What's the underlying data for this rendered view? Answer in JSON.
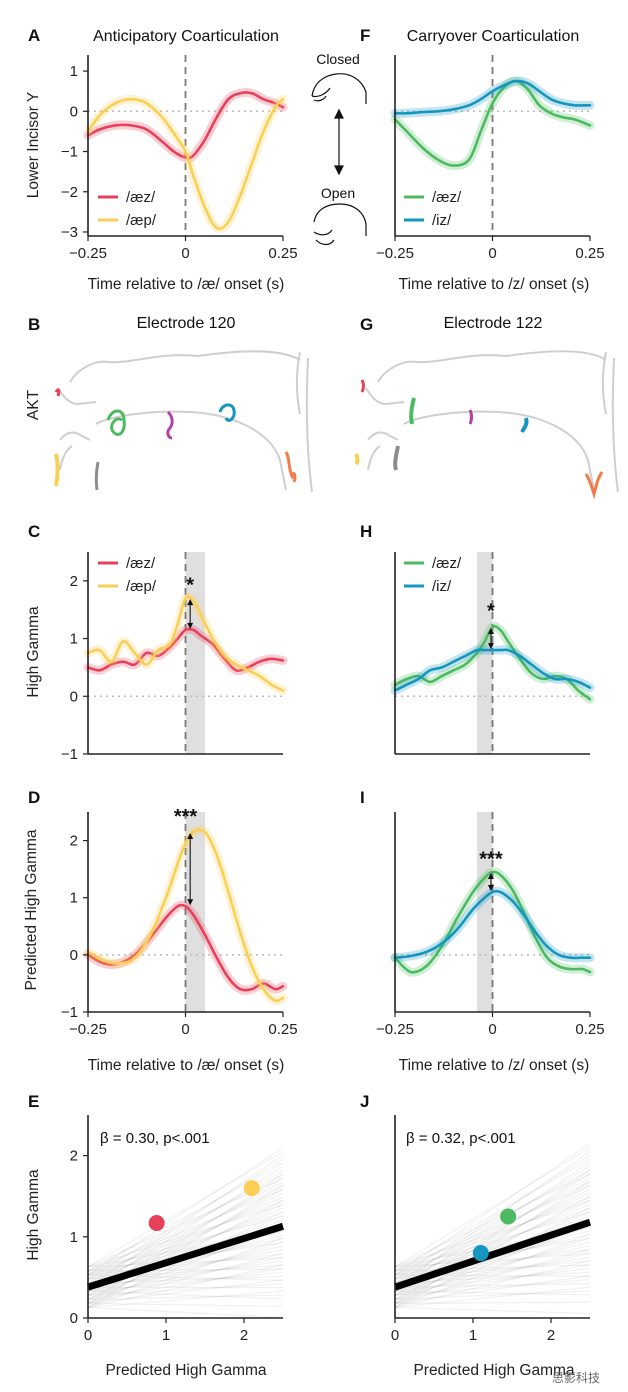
{
  "colors": {
    "red": "#e8405a",
    "yellow": "#fbcf56",
    "green": "#4cba61",
    "blue": "#1496be",
    "purple": "#b440a8",
    "orange": "#f07c4a",
    "gray": "#8c8c8c",
    "axis": "#222222",
    "grid": "#bbbbbb",
    "shade": "#d9d9d9"
  },
  "icons": [
    "jaw-closed-icon",
    "jaw-open-icon",
    "double-arrow-icon"
  ],
  "jaw_labels": {
    "closed": "Closed",
    "open": "Open"
  },
  "panels": {
    "A": {
      "letter": "A",
      "title": "Anticipatory Coarticulation"
    },
    "B": {
      "letter": "B",
      "title": "Electrode 120",
      "ylabel": "AKT"
    },
    "C": {
      "letter": "C"
    },
    "D": {
      "letter": "D"
    },
    "E": {
      "letter": "E",
      "stat": "β = 0.30, p<.001"
    },
    "F": {
      "letter": "F",
      "title": "Carryover Coarticulation"
    },
    "G": {
      "letter": "G",
      "title": "Electrode 122"
    },
    "H": {
      "letter": "H"
    },
    "I": {
      "letter": "I"
    },
    "J": {
      "letter": "J",
      "stat": "β = 0.32, p<.001"
    }
  },
  "axis_labels": {
    "y_lower_incisor": "Lower Incisor Y",
    "y_high_gamma": "High Gamma",
    "y_pred_high_gamma": "Predicted High Gamma",
    "x_ae": "Time relative to /æ/ onset (s)",
    "x_z": "Time relative to /z/ onset (s)",
    "x_pred": "Predicted High Gamma"
  },
  "legends": {
    "A": [
      "/æz/",
      "/æp/"
    ],
    "C": [
      "/æz/",
      "/æp/"
    ],
    "F": [
      "/æz/",
      "/iz/"
    ],
    "H": [
      "/æz/",
      "/iz/"
    ]
  },
  "significance": {
    "C": "*",
    "D": "***",
    "H": "*",
    "I": "***"
  },
  "watermark": "思影科技",
  "chart_data": [
    {
      "panel": "A",
      "type": "line",
      "xlabel": "Time relative to /æ/ onset (s)",
      "ylabel": "Lower Incisor Y",
      "xlim": [
        -0.25,
        0.25
      ],
      "ylim": [
        -3.1,
        1.4
      ],
      "xticks": [
        -0.25,
        0,
        0.25
      ],
      "yticks": [
        1,
        0,
        -1,
        -2,
        -3
      ],
      "xtick_labels": [
        "−0.25",
        "0",
        "0.25"
      ],
      "ytick_labels": [
        "1",
        "0",
        "−1",
        "−2",
        "−3"
      ],
      "x": [
        -0.25,
        -0.22,
        -0.18,
        -0.14,
        -0.1,
        -0.06,
        -0.03,
        0.0,
        0.02,
        0.05,
        0.08,
        0.11,
        0.14,
        0.17,
        0.2,
        0.23,
        0.25
      ],
      "series": [
        {
          "name": "/æz/",
          "color": "red",
          "values": [
            -0.6,
            -0.45,
            -0.35,
            -0.35,
            -0.45,
            -0.75,
            -1.0,
            -1.15,
            -1.1,
            -0.7,
            -0.15,
            0.3,
            0.45,
            0.45,
            0.3,
            0.2,
            0.1
          ]
        },
        {
          "name": "/æp/",
          "color": "yellow",
          "values": [
            -0.5,
            -0.1,
            0.2,
            0.3,
            0.2,
            -0.15,
            -0.55,
            -1.0,
            -1.6,
            -2.4,
            -2.9,
            -2.75,
            -2.1,
            -1.3,
            -0.5,
            0.1,
            0.3
          ]
        }
      ]
    },
    {
      "panel": "F",
      "type": "line",
      "xlabel": "Time relative to /z/ onset (s)",
      "xlim": [
        -0.25,
        0.25
      ],
      "ylim": [
        -3.1,
        1.4
      ],
      "xticks": [
        -0.25,
        0,
        0.25
      ],
      "xtick_labels": [
        "−0.25",
        "0",
        "0.25"
      ],
      "x": [
        -0.25,
        -0.22,
        -0.18,
        -0.14,
        -0.1,
        -0.06,
        -0.03,
        0.0,
        0.03,
        0.06,
        0.09,
        0.12,
        0.15,
        0.18,
        0.21,
        0.25
      ],
      "series": [
        {
          "name": "/æz/",
          "color": "green",
          "values": [
            -0.2,
            -0.5,
            -0.9,
            -1.2,
            -1.35,
            -1.2,
            -0.5,
            0.2,
            0.6,
            0.75,
            0.55,
            0.15,
            -0.05,
            -0.15,
            -0.2,
            -0.35
          ]
        },
        {
          "name": "/iz/",
          "color": "blue",
          "values": [
            -0.05,
            -0.05,
            -0.02,
            0.0,
            0.05,
            0.15,
            0.3,
            0.5,
            0.65,
            0.75,
            0.7,
            0.5,
            0.3,
            0.2,
            0.15,
            0.15
          ]
        }
      ]
    },
    {
      "panel": "C",
      "type": "line",
      "ylabel": "High Gamma",
      "xlim": [
        -0.25,
        0.25
      ],
      "ylim": [
        -1,
        2.5
      ],
      "yticks": [
        2,
        1,
        0,
        -1
      ],
      "ytick_labels": [
        "2",
        "1",
        "0",
        "−1"
      ],
      "shade": [
        0,
        0.05
      ],
      "x": [
        -0.25,
        -0.22,
        -0.19,
        -0.16,
        -0.13,
        -0.1,
        -0.07,
        -0.04,
        -0.02,
        0.0,
        0.02,
        0.04,
        0.07,
        0.1,
        0.13,
        0.16,
        0.19,
        0.22,
        0.25
      ],
      "series": [
        {
          "name": "/æz/",
          "color": "red",
          "values": [
            0.5,
            0.45,
            0.55,
            0.6,
            0.55,
            0.75,
            0.7,
            0.85,
            1.0,
            1.15,
            1.15,
            1.05,
            0.9,
            0.65,
            0.45,
            0.5,
            0.6,
            0.65,
            0.62
          ]
        },
        {
          "name": "/æp/",
          "color": "yellow",
          "values": [
            0.75,
            0.8,
            0.6,
            0.95,
            0.75,
            0.55,
            0.8,
            0.9,
            1.25,
            1.7,
            1.65,
            1.4,
            1.0,
            0.7,
            0.55,
            0.45,
            0.35,
            0.2,
            0.1
          ]
        }
      ]
    },
    {
      "panel": "H",
      "type": "line",
      "xlim": [
        -0.25,
        0.25
      ],
      "ylim": [
        -1,
        2.5
      ],
      "shade": [
        -0.04,
        0.0
      ],
      "x": [
        -0.25,
        -0.22,
        -0.19,
        -0.16,
        -0.13,
        -0.1,
        -0.07,
        -0.04,
        -0.02,
        0.0,
        0.02,
        0.04,
        0.07,
        0.1,
        0.13,
        0.16,
        0.19,
        0.22,
        0.25
      ],
      "series": [
        {
          "name": "/æz/",
          "color": "green",
          "values": [
            0.2,
            0.3,
            0.35,
            0.25,
            0.35,
            0.45,
            0.55,
            0.75,
            0.95,
            1.2,
            1.15,
            0.95,
            0.65,
            0.4,
            0.3,
            0.35,
            0.3,
            0.1,
            -0.05
          ]
        },
        {
          "name": "/iz/",
          "color": "blue",
          "values": [
            0.1,
            0.2,
            0.3,
            0.45,
            0.5,
            0.6,
            0.7,
            0.8,
            0.8,
            0.8,
            0.8,
            0.8,
            0.7,
            0.55,
            0.4,
            0.3,
            0.3,
            0.25,
            0.15
          ]
        }
      ]
    },
    {
      "panel": "D",
      "type": "line",
      "xlabel": "Time relative to /æ/ onset (s)",
      "ylabel": "Predicted High Gamma",
      "xlim": [
        -0.25,
        0.25
      ],
      "ylim": [
        -1,
        2.5
      ],
      "xticks": [
        -0.25,
        0,
        0.25
      ],
      "xtick_labels": [
        "−0.25",
        "0",
        "0.25"
      ],
      "yticks": [
        2,
        1,
        0,
        -1
      ],
      "ytick_labels": [
        "2",
        "1",
        "0",
        "−1"
      ],
      "shade": [
        0,
        0.05
      ],
      "x": [
        -0.25,
        -0.21,
        -0.17,
        -0.13,
        -0.09,
        -0.05,
        -0.02,
        0.0,
        0.02,
        0.05,
        0.08,
        0.11,
        0.14,
        0.17,
        0.2,
        0.23,
        0.25
      ],
      "series": [
        {
          "name": "/æz/",
          "color": "red",
          "values": [
            0.0,
            -0.15,
            -0.15,
            0.0,
            0.3,
            0.65,
            0.85,
            0.85,
            0.7,
            0.35,
            -0.05,
            -0.4,
            -0.6,
            -0.6,
            -0.5,
            -0.6,
            -0.55
          ]
        },
        {
          "name": "/æp/",
          "color": "yellow",
          "values": [
            0.05,
            -0.1,
            -0.15,
            -0.05,
            0.35,
            1.0,
            1.6,
            1.95,
            2.15,
            2.15,
            1.75,
            1.1,
            0.4,
            -0.2,
            -0.6,
            -0.8,
            -0.75
          ]
        }
      ]
    },
    {
      "panel": "I",
      "type": "line",
      "xlabel": "Time relative to /z/ onset (s)",
      "xlim": [
        -0.25,
        0.25
      ],
      "ylim": [
        -1,
        2.5
      ],
      "xticks": [
        -0.25,
        0,
        0.25
      ],
      "xtick_labels": [
        "−0.25",
        "0",
        "0.25"
      ],
      "shade": [
        -0.04,
        0.0
      ],
      "x": [
        -0.25,
        -0.21,
        -0.17,
        -0.13,
        -0.09,
        -0.05,
        -0.02,
        0.0,
        0.02,
        0.05,
        0.08,
        0.11,
        0.14,
        0.17,
        0.2,
        0.23,
        0.25
      ],
      "series": [
        {
          "name": "/æz/",
          "color": "green",
          "values": [
            -0.05,
            -0.3,
            -0.2,
            0.15,
            0.65,
            1.1,
            1.35,
            1.45,
            1.4,
            1.15,
            0.75,
            0.3,
            -0.05,
            -0.2,
            -0.25,
            -0.25,
            -0.3
          ]
        },
        {
          "name": "/iz/",
          "color": "blue",
          "values": [
            -0.05,
            -0.02,
            0.05,
            0.2,
            0.45,
            0.8,
            1.0,
            1.1,
            1.1,
            0.95,
            0.7,
            0.4,
            0.15,
            0.0,
            -0.05,
            -0.05,
            -0.05
          ]
        }
      ]
    },
    {
      "panel": "E",
      "type": "scatter",
      "xlabel": "Predicted High Gamma",
      "ylabel": "High Gamma",
      "xlim": [
        0,
        2.5
      ],
      "ylim": [
        0,
        2.5
      ],
      "xticks": [
        0,
        1,
        2
      ],
      "yticks": [
        2,
        1,
        0
      ],
      "points": [
        {
          "x": 0.88,
          "y": 1.17,
          "color": "red"
        },
        {
          "x": 2.1,
          "y": 1.6,
          "color": "yellow"
        }
      ],
      "fit": {
        "slope": 0.3,
        "intercept": 0.38
      }
    },
    {
      "panel": "J",
      "type": "scatter",
      "xlabel": "Predicted High Gamma",
      "xlim": [
        0,
        2.5
      ],
      "ylim": [
        0,
        2.5
      ],
      "xticks": [
        0,
        1,
        2
      ],
      "points": [
        {
          "x": 1.45,
          "y": 1.25,
          "color": "green"
        },
        {
          "x": 1.1,
          "y": 0.8,
          "color": "blue"
        }
      ],
      "fit": {
        "slope": 0.32,
        "intercept": 0.38
      }
    }
  ]
}
